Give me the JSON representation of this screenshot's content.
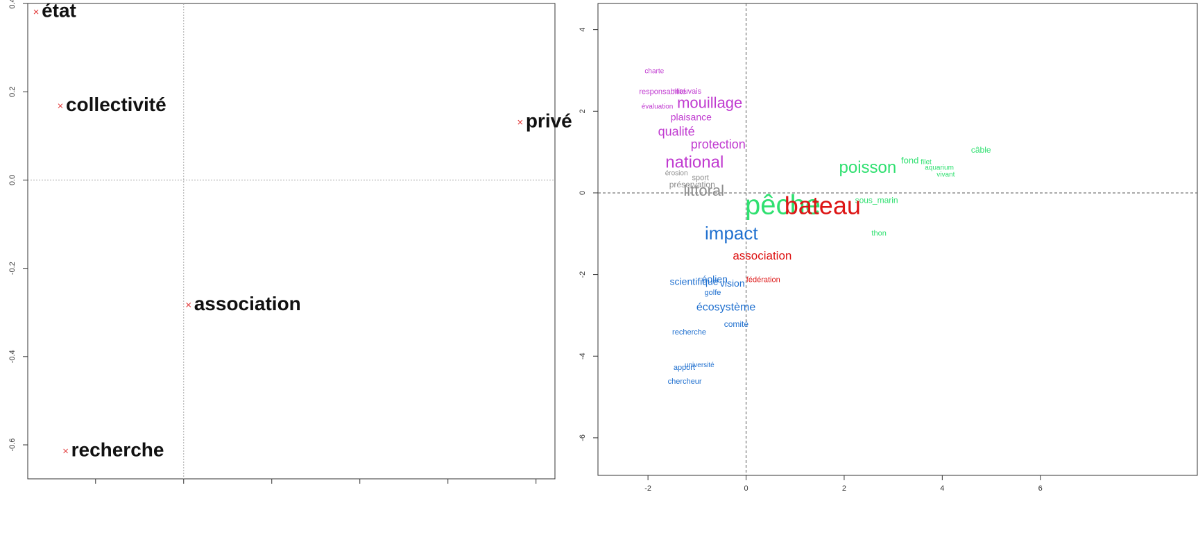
{
  "chart_data": [
    {
      "type": "scatter",
      "labels": [
        "état",
        "collectivité",
        "privé",
        "association",
        "recherche"
      ],
      "x": [
        -0.335,
        -0.28,
        0.764,
        0.011,
        -0.268
      ],
      "values": [
        0.381,
        0.168,
        0.131,
        -0.283,
        -0.614
      ],
      "marker_color": "#e03030",
      "xlim": [
        -0.354,
        0.843
      ],
      "xticks": [
        -0.2,
        0,
        0.2,
        0.4,
        0.6,
        0.8
      ],
      "ylim": [
        -0.677,
        0.4
      ],
      "yticks": [
        0.4,
        0.2,
        {
          "value": 0,
          "label": "0.0"
        },
        -0.2,
        -0.4,
        -0.6
      ]
    },
    {
      "type": "wordmap",
      "series": [
        {
          "color": "#c03ad0",
          "labels": [
            "charte",
            "responsabilité",
            "mauvais",
            "évaluation",
            "mouillage",
            "plaisance",
            "qualité",
            "protection",
            "national"
          ],
          "x": [
            -1.87,
            -1.7,
            -1.2,
            -1.81,
            -0.74,
            -1.12,
            -1.42,
            -0.57,
            -1.05
          ],
          "values": [
            2.98,
            2.47,
            2.48,
            2.11,
            2.18,
            1.84,
            1.48,
            1.17,
            0.73
          ],
          "sizes": [
            10,
            11,
            11,
            10,
            22,
            14,
            18,
            18,
            24
          ]
        },
        {
          "color": "#8c8c8c",
          "labels": [
            "érosion",
            "sport",
            "préservation",
            "littoral"
          ],
          "x": [
            -1.42,
            -0.93,
            -1.1,
            -0.86
          ],
          "values": [
            0.48,
            0.36,
            0.19,
            0.03
          ],
          "sizes": [
            10,
            11,
            12,
            22
          ]
        },
        {
          "color": "#2fe070",
          "labels": [
            "pêche",
            "poisson",
            "fond",
            "filet",
            "aquarium",
            "vivant",
            "câble",
            "sous_marin",
            "thon"
          ],
          "x": [
            0.75,
            2.48,
            3.34,
            3.67,
            3.94,
            4.07,
            4.79,
            2.66,
            2.71
          ],
          "values": [
            -0.34,
            0.6,
            0.78,
            0.75,
            0.61,
            0.44,
            1.04,
            -0.19,
            -1.0
          ],
          "sizes": [
            40,
            24,
            13,
            10,
            10,
            10,
            12,
            12,
            11
          ]
        },
        {
          "color": "#dd1414",
          "labels": [
            "bateau",
            "association",
            "fédération"
          ],
          "x": [
            1.56,
            0.33,
            0.35
          ],
          "values": [
            -0.36,
            -1.56,
            -2.14
          ],
          "sizes": [
            36,
            17,
            11
          ]
        },
        {
          "color": "#1e6fcf",
          "labels": [
            "impact",
            "scientifique",
            "éolien",
            "vision",
            "golfe",
            "écosystème",
            "comité",
            "recherche",
            "université",
            "apport",
            "chercheur"
          ],
          "x": [
            -0.3,
            -1.06,
            -0.64,
            -0.28,
            -0.68,
            -0.41,
            -0.2,
            -1.16,
            -0.95,
            -1.26,
            -1.25
          ],
          "values": [
            -1.02,
            -2.19,
            -2.13,
            -2.23,
            -2.45,
            -2.81,
            -3.23,
            -3.42,
            -4.22,
            -4.29,
            -4.63
          ],
          "sizes": [
            26,
            14,
            14,
            14,
            11,
            16,
            12,
            11,
            10,
            11,
            11
          ]
        }
      ],
      "xlim": [
        -3.02,
        9.2
      ],
      "xticks": [
        -2,
        0,
        2,
        4,
        6
      ],
      "ylim": [
        -6.92,
        4.64
      ],
      "yticks": [
        4,
        2,
        0,
        -2,
        -4,
        -6
      ]
    }
  ]
}
